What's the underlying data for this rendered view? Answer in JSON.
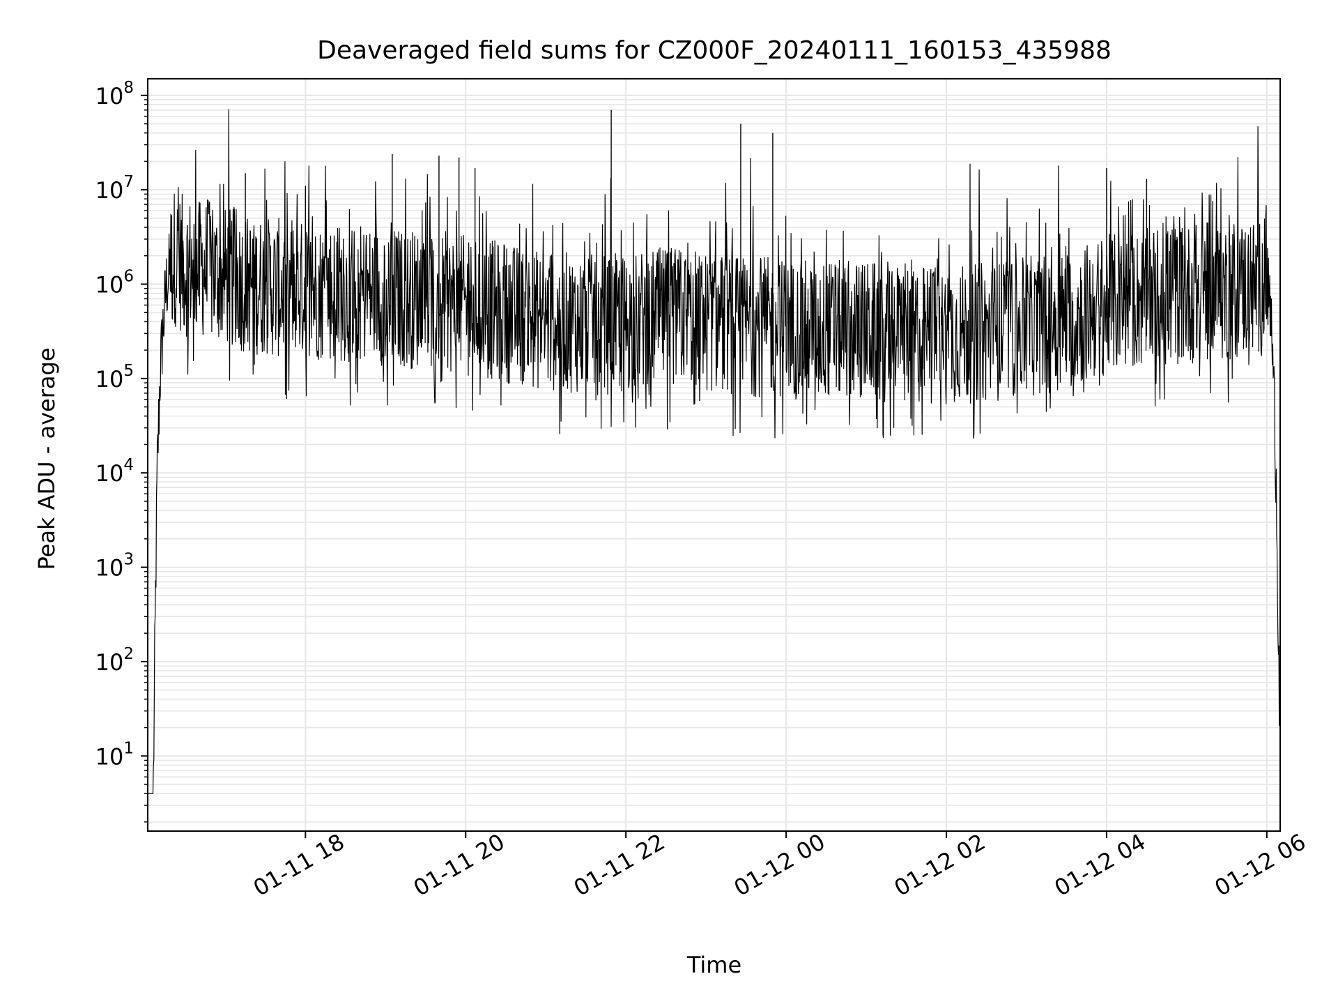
{
  "chart_data": {
    "type": "line",
    "title": "Deaveraged field sums for CZ000F_20240111_160153_435988",
    "xlabel": "Time",
    "ylabel": "Peak ADU - average",
    "y_scale": "log",
    "ylim": [
      1.6,
      150000000
    ],
    "xlim": [
      "2024-01-11 16:01:53",
      "2024-01-12 06:10:00"
    ],
    "x_ticks": [
      {
        "label": "01-11 18",
        "value": "2024-01-11 18:00"
      },
      {
        "label": "01-11 20",
        "value": "2024-01-11 20:00"
      },
      {
        "label": "01-11 22",
        "value": "2024-01-11 22:00"
      },
      {
        "label": "01-12 00",
        "value": "2024-01-12 00:00"
      },
      {
        "label": "01-12 02",
        "value": "2024-01-12 02:00"
      },
      {
        "label": "01-12 04",
        "value": "2024-01-12 04:00"
      },
      {
        "label": "01-12 06",
        "value": "2024-01-12 06:00"
      }
    ],
    "y_ticks": [
      {
        "base": "10",
        "exp": "1",
        "value": 10
      },
      {
        "base": "10",
        "exp": "2",
        "value": 100
      },
      {
        "base": "10",
        "exp": "3",
        "value": 1000
      },
      {
        "base": "10",
        "exp": "4",
        "value": 10000
      },
      {
        "base": "10",
        "exp": "5",
        "value": 100000
      },
      {
        "base": "10",
        "exp": "6",
        "value": 1000000
      },
      {
        "base": "10",
        "exp": "7",
        "value": 10000000
      },
      {
        "base": "10",
        "exp": "8",
        "value": 100000000
      }
    ],
    "grid": true,
    "grid_minor": true,
    "line_color": "#000000",
    "grid_color": "#e6e6e6",
    "series": [
      {
        "x": [
          "2024-01-11 16:01:53",
          "2024-01-11 16:04",
          "2024-01-11 16:06",
          "2024-01-11 16:08",
          "2024-01-11 16:09",
          "2024-01-11 16:11",
          "2024-01-11 16:13",
          "2024-01-11 16:16",
          "2024-01-11 16:19",
          "2024-01-11 16:22",
          "2024-01-11 16:25",
          "2024-01-11 16:30",
          "2024-01-11 16:35",
          "2024-01-11 16:40",
          "2024-01-11 16:45",
          "2024-01-11 16:50",
          "2024-01-11 17:00",
          "2024-01-11 17:10",
          "2024-01-11 17:15",
          "2024-01-11 17:20",
          "2024-01-11 17:30",
          "2024-01-11 17:40",
          "2024-01-11 17:50",
          "2024-01-11 18:00",
          "2024-01-11 18:15",
          "2024-01-11 18:30",
          "2024-01-11 18:45",
          "2024-01-11 19:00",
          "2024-01-11 19:05",
          "2024-01-11 19:15",
          "2024-01-11 19:30",
          "2024-01-11 19:45",
          "2024-01-11 19:55",
          "2024-01-11 20:00",
          "2024-01-11 20:15",
          "2024-01-11 20:30",
          "2024-01-11 20:45",
          "2024-01-11 21:00",
          "2024-01-11 21:15",
          "2024-01-11 21:30",
          "2024-01-11 21:45",
          "2024-01-11 21:49",
          "2024-01-11 22:00",
          "2024-01-11 22:15",
          "2024-01-11 22:30",
          "2024-01-11 22:45",
          "2024-01-11 23:00",
          "2024-01-11 23:15",
          "2024-01-11 23:26",
          "2024-01-11 23:30",
          "2024-01-11 23:45",
          "2024-01-12 00:00",
          "2024-01-12 00:15",
          "2024-01-12 00:30",
          "2024-01-12 00:45",
          "2024-01-12 01:00",
          "2024-01-12 01:15",
          "2024-01-12 01:30",
          "2024-01-12 01:45",
          "2024-01-12 02:00",
          "2024-01-12 02:15",
          "2024-01-12 02:30",
          "2024-01-12 02:45",
          "2024-01-12 03:00",
          "2024-01-12 03:15",
          "2024-01-12 03:30",
          "2024-01-12 03:45",
          "2024-01-12 04:00",
          "2024-01-12 04:15",
          "2024-01-12 04:30",
          "2024-01-12 04:45",
          "2024-01-12 05:00",
          "2024-01-12 05:15",
          "2024-01-12 05:30",
          "2024-01-12 05:45",
          "2024-01-12 05:55",
          "2024-01-12 06:00",
          "2024-01-12 06:03",
          "2024-01-12 06:05",
          "2024-01-12 06:07",
          "2024-01-12 06:08",
          "2024-01-12 06:09",
          "2024-01-12 06:10"
        ],
        "y": [
          4,
          4,
          4,
          1000,
          10000,
          100000,
          300000,
          1000000,
          1500000,
          2000000,
          1800000,
          1500000,
          1600000,
          1400000,
          1500000,
          1300000,
          1200000,
          1100000,
          1000000,
          1000000,
          950000,
          900000,
          900000,
          850000,
          850000,
          800000,
          800000,
          750000,
          750000,
          700000,
          700000,
          650000,
          600000,
          600000,
          550000,
          500000,
          450000,
          400000,
          400000,
          380000,
          370000,
          370000,
          400000,
          420000,
          450000,
          450000,
          400000,
          380000,
          370000,
          360000,
          350000,
          340000,
          330000,
          330000,
          320000,
          320000,
          310000,
          300000,
          290000,
          300000,
          300000,
          310000,
          320000,
          350000,
          380000,
          420000,
          500000,
          600000,
          650000,
          700000,
          750000,
          800000,
          800000,
          850000,
          900000,
          950000,
          1000000,
          500000,
          100000,
          10000,
          1000,
          100,
          10
        ]
      }
    ],
    "noise": {
      "floor_factor": 0.08,
      "spike_factor": 9
    },
    "annotated_spikes": [
      {
        "x": "2024-01-11 17:15",
        "y": 15000000
      },
      {
        "x": "2024-01-11 18:00",
        "y": 11000000
      },
      {
        "x": "2024-01-11 19:05",
        "y": 24000000
      },
      {
        "x": "2024-01-11 19:40",
        "y": 23000000
      },
      {
        "x": "2024-01-11 19:55",
        "y": 22000000
      },
      {
        "x": "2024-01-11 20:07",
        "y": 17000000
      },
      {
        "x": "2024-01-11 21:49",
        "y": 70000000
      },
      {
        "x": "2024-01-11 23:26",
        "y": 50000000
      },
      {
        "x": "2024-01-11 23:50",
        "y": 40000000
      },
      {
        "x": "2024-01-12 04:00",
        "y": 17000000
      },
      {
        "x": "2024-01-12 04:30",
        "y": 13000000
      }
    ]
  }
}
